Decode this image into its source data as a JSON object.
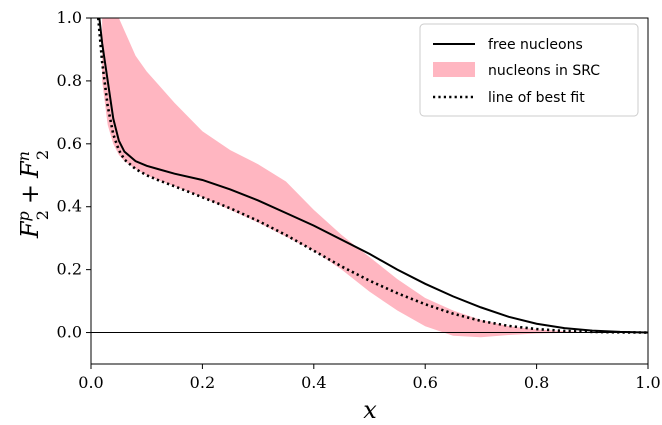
{
  "chart_data": {
    "type": "line",
    "title": "",
    "xlabel": "x",
    "ylabel_main": "F",
    "ylabel_p_sup": "p",
    "ylabel_n_sup": "n",
    "ylabel_sub": "2",
    "ylabel_plus": "+",
    "xlim": [
      0.0,
      1.0
    ],
    "ylim": [
      -0.1,
      1.0
    ],
    "grid": false,
    "legend_placement": "top-right",
    "x_ticks": [
      "0.0",
      "0.2",
      "0.4",
      "0.6",
      "0.8",
      "1.0"
    ],
    "y_ticks": [
      "0.0",
      "0.2",
      "0.4",
      "0.6",
      "0.8",
      "1.0"
    ],
    "x_tick_values": [
      0.0,
      0.2,
      0.4,
      0.6,
      0.8,
      1.0
    ],
    "y_tick_values": [
      0.0,
      0.2,
      0.4,
      0.6,
      0.8,
      1.0
    ],
    "reference_line_y": 0.0,
    "series": [
      {
        "name": "free nucleons",
        "style": "solid",
        "color": "#000000",
        "x": [
          0.015,
          0.02,
          0.03,
          0.04,
          0.05,
          0.06,
          0.08,
          0.1,
          0.12,
          0.15,
          0.2,
          0.25,
          0.3,
          0.35,
          0.4,
          0.45,
          0.5,
          0.55,
          0.6,
          0.65,
          0.7,
          0.75,
          0.8,
          0.85,
          0.9,
          0.95,
          1.0
        ],
        "y": [
          1.0,
          0.92,
          0.8,
          0.68,
          0.61,
          0.575,
          0.545,
          0.53,
          0.52,
          0.505,
          0.485,
          0.455,
          0.42,
          0.38,
          0.34,
          0.295,
          0.25,
          0.2,
          0.155,
          0.115,
          0.08,
          0.05,
          0.028,
          0.014,
          0.006,
          0.002,
          0.0
        ]
      },
      {
        "name": "line of best fit",
        "style": "dotted",
        "color": "#000000",
        "x": [
          0.013,
          0.02,
          0.03,
          0.04,
          0.05,
          0.06,
          0.08,
          0.1,
          0.12,
          0.15,
          0.2,
          0.25,
          0.3,
          0.35,
          0.4,
          0.45,
          0.5,
          0.55,
          0.6,
          0.65,
          0.7,
          0.75,
          0.8,
          0.85,
          0.9,
          0.95,
          1.0
        ],
        "y": [
          1.0,
          0.86,
          0.72,
          0.63,
          0.58,
          0.55,
          0.52,
          0.5,
          0.485,
          0.465,
          0.43,
          0.395,
          0.355,
          0.31,
          0.26,
          0.21,
          0.165,
          0.125,
          0.09,
          0.06,
          0.037,
          0.021,
          0.011,
          0.005,
          0.002,
          0.0005,
          0.0
        ]
      }
    ],
    "band": {
      "name": "nucleons in SRC",
      "color": "#ffb6c1",
      "x": [
        0.02,
        0.03,
        0.04,
        0.05,
        0.06,
        0.08,
        0.1,
        0.12,
        0.15,
        0.2,
        0.25,
        0.3,
        0.35,
        0.4,
        0.45,
        0.5,
        0.55,
        0.6,
        0.65,
        0.7,
        0.75,
        0.8,
        0.85,
        0.9,
        0.95,
        1.0
      ],
      "upper": [
        1.0,
        1.0,
        1.0,
        1.0,
        0.96,
        0.88,
        0.83,
        0.79,
        0.73,
        0.64,
        0.58,
        0.535,
        0.48,
        0.39,
        0.31,
        0.24,
        0.17,
        0.11,
        0.07,
        0.04,
        0.02,
        0.01,
        0.004,
        0.001,
        0.0,
        0.0
      ],
      "lower": [
        0.8,
        0.66,
        0.6,
        0.565,
        0.545,
        0.52,
        0.5,
        0.485,
        0.465,
        0.43,
        0.39,
        0.35,
        0.305,
        0.26,
        0.2,
        0.13,
        0.07,
        0.02,
        -0.01,
        -0.015,
        -0.008,
        -0.003,
        -0.001,
        0.0,
        0.0,
        0.0
      ]
    },
    "legend": {
      "entries": [
        "free nucleons",
        "nucleons in SRC",
        "line of best fit"
      ]
    }
  }
}
